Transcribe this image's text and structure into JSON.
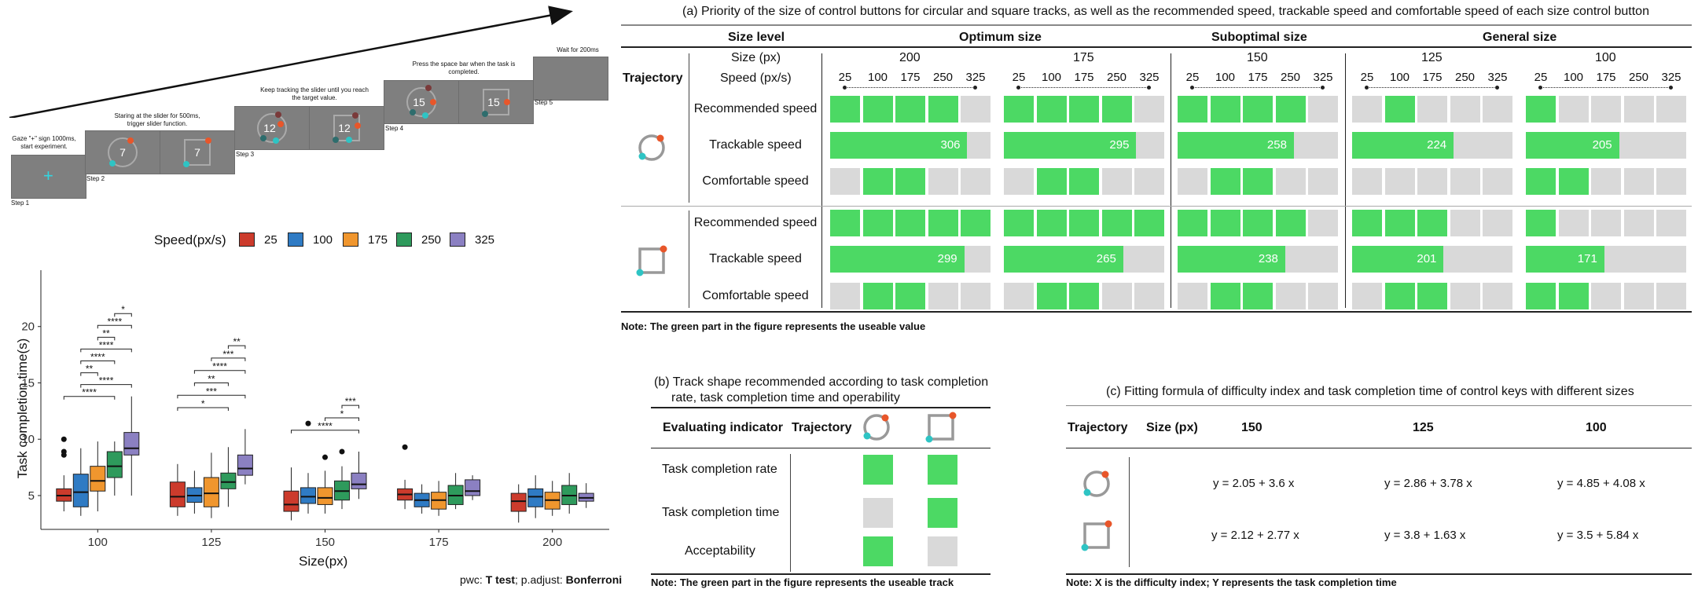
{
  "procedure": {
    "step1": {
      "caption": "Gaze \"+\" sign 1000ms, start experiment.",
      "label": "Step 1"
    },
    "step2": {
      "caption": "Staring at the slider for 500ms, trigger slider function.",
      "label": "Step 2",
      "number": "7"
    },
    "step3": {
      "caption": "Keep tracking the slider until you reach the target value.",
      "label": "Step 3",
      "number": "12"
    },
    "step4": {
      "caption": "Press the space bar when the task is completed.",
      "label": "Step 4",
      "number": "15"
    },
    "step5": {
      "caption": "Wait for 200ms",
      "label": "Step 5"
    },
    "colors": {
      "screen": "#7f7f7f",
      "slider_orange": "#e8562a",
      "slider_teal": "#2ec4c4",
      "plus": "#33d6e0"
    }
  },
  "boxplot": {
    "legend_title": "Speed(px/s)",
    "legend": [
      {
        "label": "25",
        "color": "#cc3b2c"
      },
      {
        "label": "100",
        "color": "#2f7bc4"
      },
      {
        "label": "175",
        "color": "#f0962e"
      },
      {
        "label": "250",
        "color": "#2e9a5c"
      },
      {
        "label": "325",
        "color": "#8b80c2"
      }
    ],
    "ylabel": "Task completion time(s)",
    "xlabel": "Size(px)",
    "yticks": [
      "5",
      "10",
      "15",
      "20"
    ],
    "footnote_prefix": "pwc: ",
    "footnote_test": "T test",
    "footnote_mid": "; p.adjust: ",
    "footnote_method": "Bonferroni"
  },
  "chart_data": {
    "type": "box",
    "xlabel": "Size(px)",
    "ylabel": "Task completion time(s)",
    "ylim": [
      2,
      25
    ],
    "categories": [
      "100",
      "125",
      "150",
      "175",
      "200"
    ],
    "series": [
      {
        "name": "25",
        "boxes": [
          [
            3.6,
            4.5,
            5.0,
            5.6,
            6.8
          ],
          [
            3.2,
            4.0,
            4.9,
            6.2,
            7.8
          ],
          [
            2.8,
            3.6,
            4.2,
            5.4,
            7.5
          ],
          [
            3.8,
            4.6,
            5.1,
            5.6,
            6.4
          ],
          [
            2.6,
            3.6,
            4.5,
            5.2,
            6.0
          ]
        ],
        "outliers": [
          [
            8.6,
            8.9,
            10.0
          ],
          [],
          [],
          [
            9.3
          ],
          []
        ]
      },
      {
        "name": "100",
        "boxes": [
          [
            3.2,
            4.0,
            5.3,
            6.9,
            9.2
          ],
          [
            3.4,
            4.4,
            5.0,
            5.7,
            7.2
          ],
          [
            3.4,
            4.3,
            4.9,
            5.7,
            7.0
          ],
          [
            3.4,
            4.0,
            4.6,
            5.2,
            6.0
          ],
          [
            3.0,
            4.0,
            4.9,
            5.6,
            6.8
          ]
        ],
        "outliers": [
          [],
          [],
          [
            11.4
          ],
          [],
          []
        ]
      },
      {
        "name": "175",
        "boxes": [
          [
            3.6,
            5.4,
            6.3,
            7.6,
            9.8
          ],
          [
            3.0,
            4.0,
            5.2,
            6.6,
            8.8
          ],
          [
            3.4,
            4.2,
            4.8,
            5.7,
            7.2
          ],
          [
            3.2,
            3.8,
            4.6,
            5.3,
            6.3
          ],
          [
            3.2,
            3.8,
            4.6,
            5.3,
            6.3
          ]
        ],
        "outliers": [
          [],
          [],
          [
            8.4
          ],
          [],
          []
        ]
      },
      {
        "name": "250",
        "boxes": [
          [
            5.0,
            6.6,
            7.6,
            8.9,
            9.8
          ],
          [
            4.0,
            5.6,
            6.2,
            7.0,
            9.3
          ],
          [
            3.8,
            4.6,
            5.4,
            6.3,
            7.6
          ],
          [
            3.8,
            4.2,
            5.0,
            5.9,
            7.0
          ],
          [
            3.4,
            4.2,
            5.0,
            5.9,
            7.0
          ]
        ],
        "outliers": [
          [],
          [],
          [
            8.9
          ],
          [],
          []
        ]
      },
      {
        "name": "325",
        "boxes": [
          [
            5.0,
            8.6,
            9.2,
            10.6,
            13.8
          ],
          [
            6.0,
            6.8,
            7.4,
            8.6,
            10.9
          ],
          [
            4.7,
            5.6,
            6.0,
            7.0,
            8.9
          ],
          [
            4.6,
            5.0,
            5.4,
            6.4,
            6.8
          ],
          [
            3.9,
            4.5,
            4.8,
            5.2,
            6.1
          ]
        ],
        "outliers": [
          [],
          [],
          [],
          [],
          []
        ]
      }
    ],
    "significance": [
      {
        "group": "100",
        "pair": [
          "250",
          "325"
        ],
        "label": "*"
      },
      {
        "group": "100",
        "pair": [
          "175",
          "325"
        ],
        "label": "****"
      },
      {
        "group": "100",
        "pair": [
          "175",
          "250"
        ],
        "label": "**"
      },
      {
        "group": "100",
        "pair": [
          "100",
          "325"
        ],
        "label": "****"
      },
      {
        "group": "100",
        "pair": [
          "100",
          "250"
        ],
        "label": "****"
      },
      {
        "group": "100",
        "pair": [
          "100",
          "175"
        ],
        "label": "**"
      },
      {
        "group": "100",
        "pair": [
          "100",
          "325"
        ],
        "label": "****"
      },
      {
        "group": "100",
        "pair": [
          "25",
          "250"
        ],
        "label": "****"
      },
      {
        "group": "125",
        "pair": [
          "250",
          "325"
        ],
        "label": "**"
      },
      {
        "group": "125",
        "pair": [
          "175",
          "325"
        ],
        "label": "***"
      },
      {
        "group": "125",
        "pair": [
          "100",
          "325"
        ],
        "label": "****"
      },
      {
        "group": "125",
        "pair": [
          "100",
          "250"
        ],
        "label": "**"
      },
      {
        "group": "125",
        "pair": [
          "25",
          "325"
        ],
        "label": "***"
      },
      {
        "group": "125",
        "pair": [
          "25",
          "250"
        ],
        "label": "*"
      },
      {
        "group": "150",
        "pair": [
          "250",
          "325"
        ],
        "label": "***"
      },
      {
        "group": "150",
        "pair": [
          "175",
          "325"
        ],
        "label": "*"
      },
      {
        "group": "150",
        "pair": [
          "25",
          "325"
        ],
        "label": "****"
      }
    ]
  },
  "panel_a": {
    "title": "(a) Priority of the size of control buttons for circular and square tracks, as well as the recommended speed, trackable speed and comfortable speed of each size control button",
    "size_level_label": "Size level",
    "size_px_label": "Size (px)",
    "speed_label": "Speed (px/s)",
    "trajectory_label": "Trajectory",
    "groups": [
      "Optimum size",
      "Suboptimal size",
      "General size"
    ],
    "sizes": [
      "200",
      "175",
      "150",
      "125",
      "100"
    ],
    "speeds": [
      "25",
      "100",
      "175",
      "250",
      "325"
    ],
    "row_labels": [
      "Recommended speed",
      "Trackable speed",
      "Comfortable speed"
    ],
    "circle": {
      "recommended": [
        [
          1,
          1,
          1,
          1,
          0
        ],
        [
          1,
          1,
          1,
          1,
          0
        ],
        [
          1,
          1,
          1,
          1,
          0
        ],
        [
          0,
          1,
          0,
          0,
          0
        ],
        [
          1,
          0,
          0,
          0,
          0
        ]
      ],
      "trackable": [
        306,
        295,
        258,
        224,
        205
      ],
      "comfortable": [
        [
          0,
          1,
          1,
          0,
          0
        ],
        [
          0,
          1,
          1,
          0,
          0
        ],
        [
          0,
          1,
          1,
          0,
          0
        ],
        [
          0,
          0,
          0,
          0,
          0
        ],
        [
          1,
          1,
          0,
          0,
          0
        ]
      ]
    },
    "square": {
      "recommended": [
        [
          1,
          1,
          1,
          1,
          1
        ],
        [
          1,
          1,
          1,
          1,
          1
        ],
        [
          1,
          1,
          1,
          1,
          0
        ],
        [
          1,
          1,
          1,
          0,
          0
        ],
        [
          1,
          0,
          0,
          0,
          0
        ]
      ],
      "trackable": [
        299,
        265,
        238,
        201,
        171
      ],
      "comfortable": [
        [
          0,
          1,
          1,
          0,
          0
        ],
        [
          0,
          1,
          1,
          0,
          0
        ],
        [
          0,
          1,
          1,
          0,
          0
        ],
        [
          0,
          1,
          1,
          0,
          0
        ],
        [
          1,
          1,
          0,
          0,
          0
        ]
      ]
    },
    "note": "Note: The green part in the figure represents the useable value"
  },
  "panel_b": {
    "title_line1": "(b) Track shape recommended according to task completion",
    "title_line2": "rate, task completion time and operability",
    "col_indicator": "Evaluating indicator",
    "col_trajectory": "Trajectory",
    "rows": [
      {
        "label": "Task completion rate",
        "circle": true,
        "square": true
      },
      {
        "label": "Task completion time",
        "circle": false,
        "square": true
      },
      {
        "label": "Acceptability",
        "circle": true,
        "square": false
      }
    ],
    "note": "Note: The green part in the figure represents the useable track"
  },
  "panel_c": {
    "title": "(c) Fitting formula of difficulty index and task completion time of control keys with different sizes",
    "col_trajectory": "Trajectory",
    "col_size": "Size (px)",
    "sizes": [
      "150",
      "125",
      "100"
    ],
    "circle_formulas": [
      "y = 2.05 + 3.6 x",
      "y = 2.86 + 3.78 x",
      "y = 4.85 + 4.08 x"
    ],
    "square_formulas": [
      "y = 2.12 + 2.77 x",
      "y = 3.8 + 1.63 x",
      "y = 3.5 + 5.84 x"
    ],
    "note": "Note: X is the difficulty index; Y represents the task completion time"
  },
  "colors": {
    "green": "#4cd964",
    "grey": "#d9d9d9",
    "track_grey": "#999999",
    "knob_orange": "#e8562a",
    "knob_teal": "#2ec4c4"
  }
}
